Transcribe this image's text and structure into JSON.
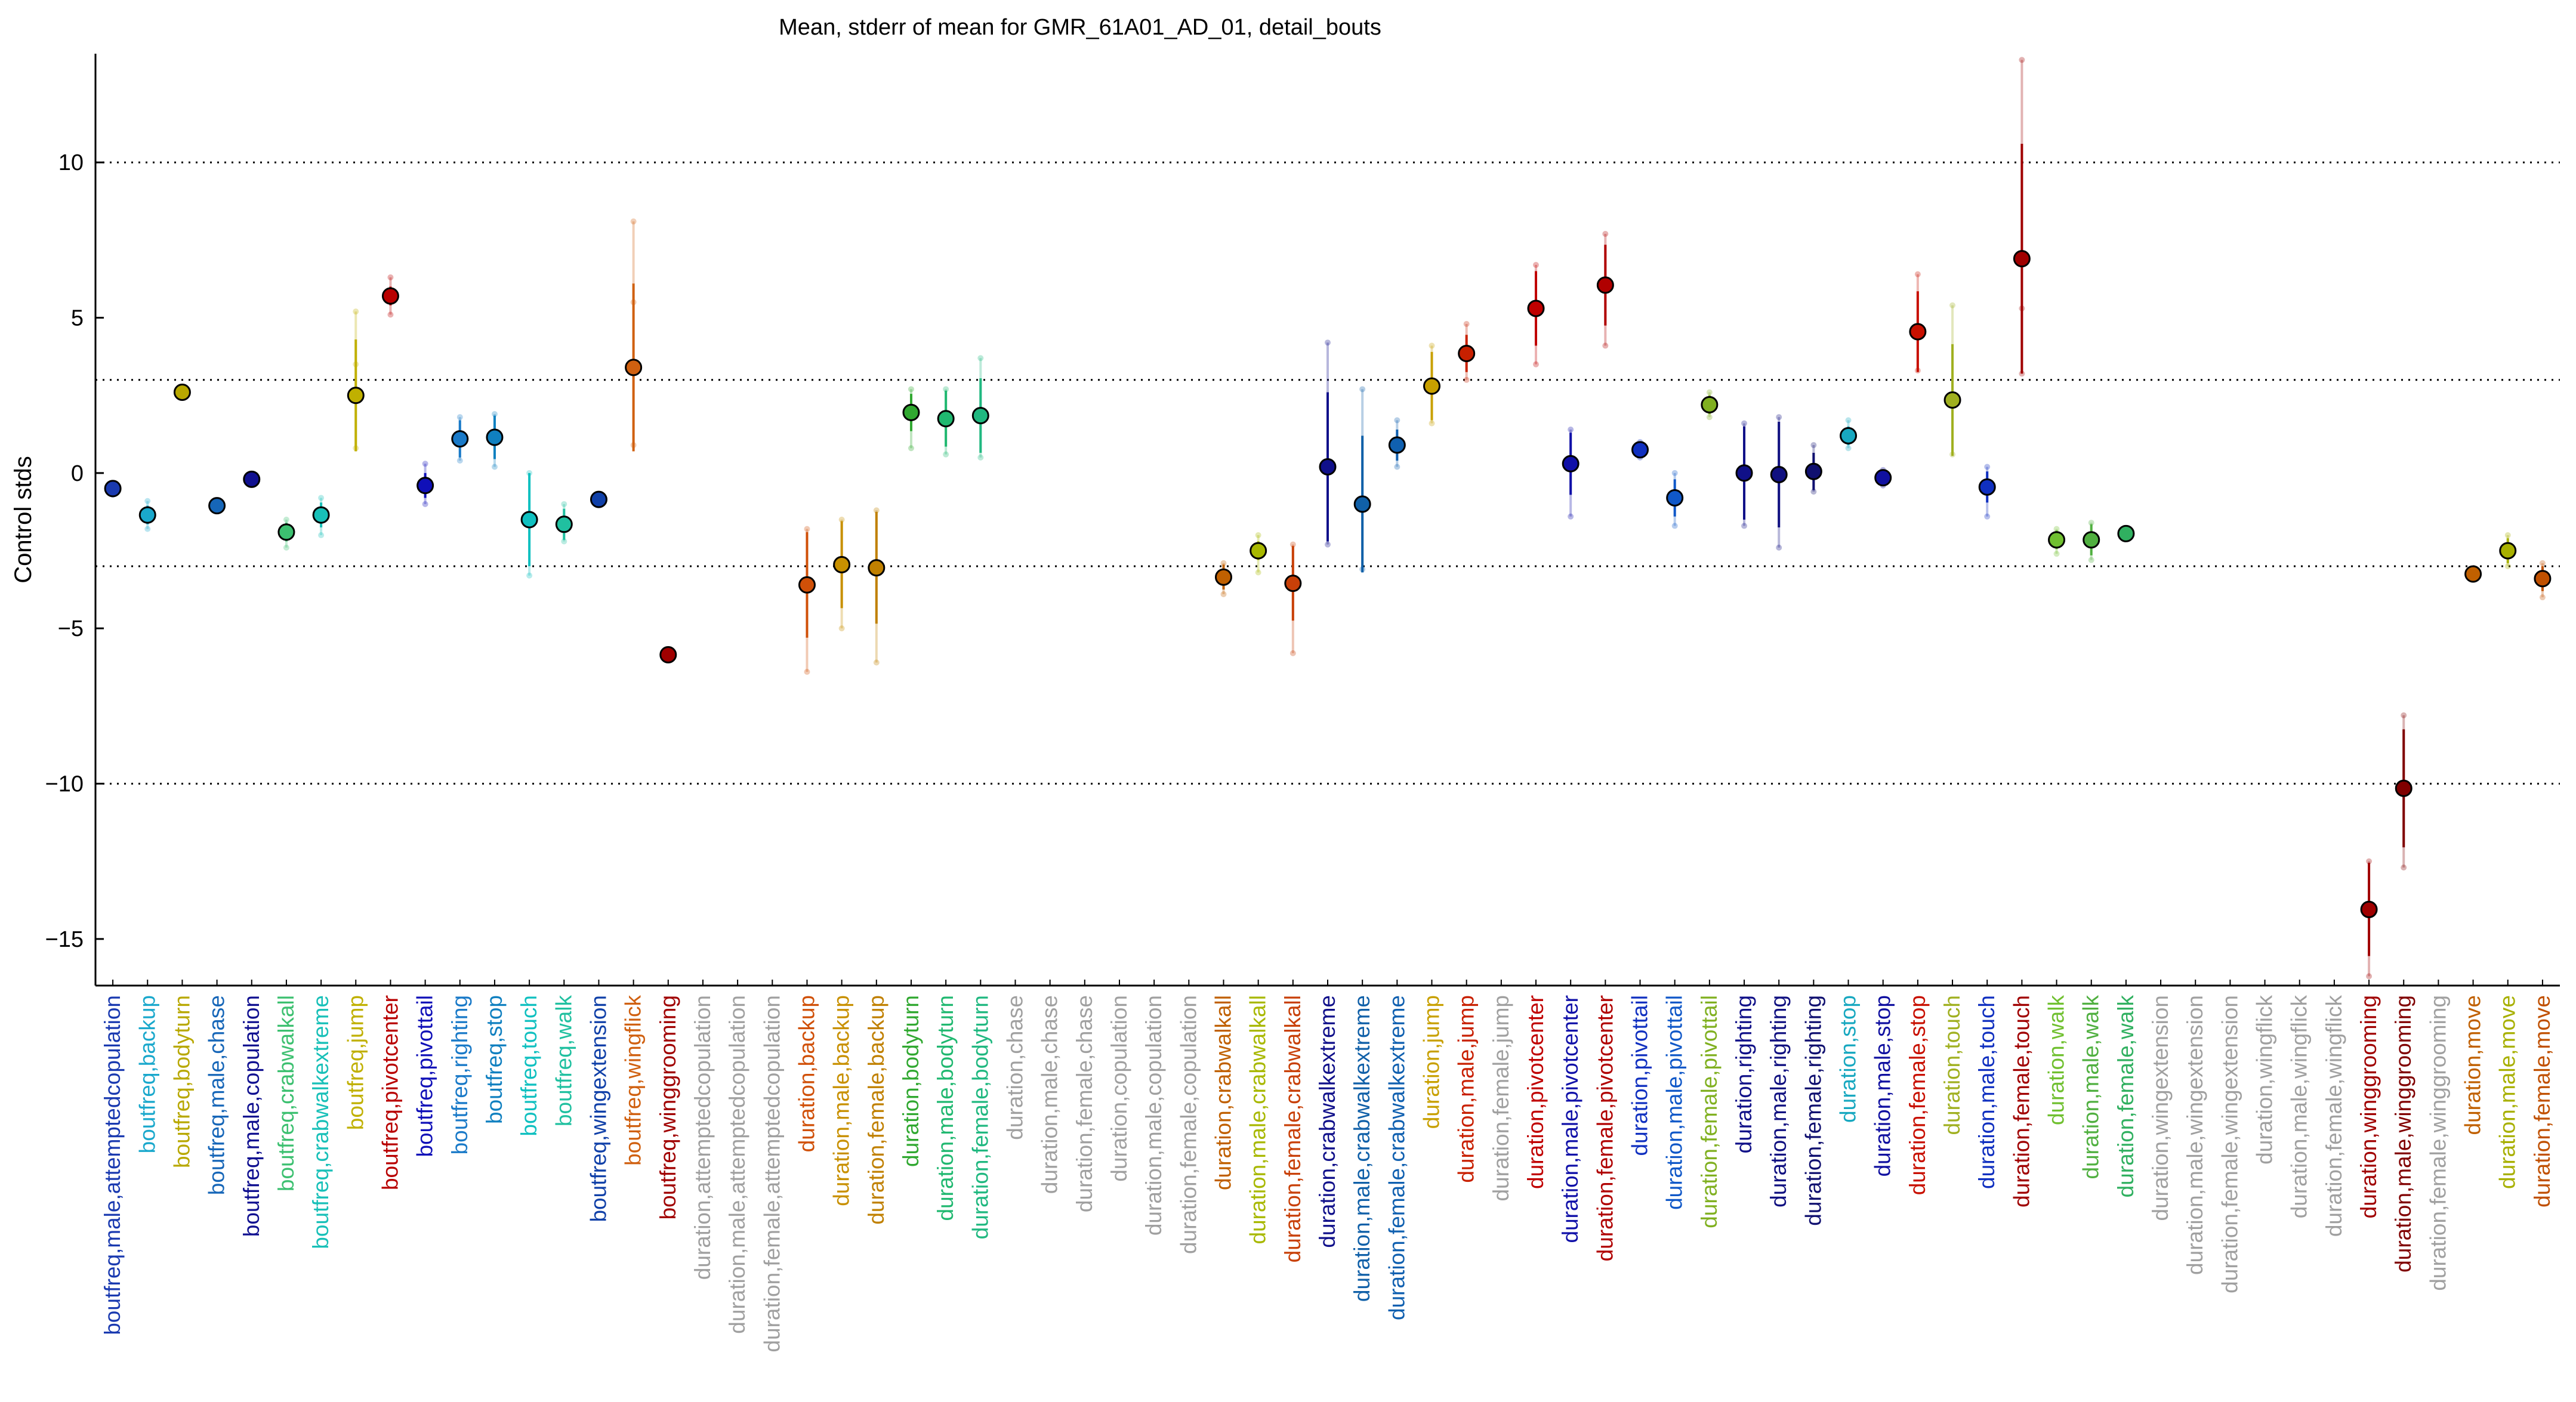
{
  "chart_data": {
    "type": "scatter",
    "title": "Mean, stderr of mean for GMR_61A01_AD_01, detail_bouts",
    "ylabel": "Control stds",
    "xlabel": "",
    "ylim": [
      -16.5,
      13.5
    ],
    "yticks": [
      -15,
      -10,
      -5,
      0,
      5,
      10
    ],
    "reference_lines": [
      -10,
      -3,
      3,
      10
    ],
    "grid": false,
    "points": [
      {
        "label": "boutfreq,male,attemptedcopulation",
        "y": -0.5,
        "err": 0.2,
        "pts": [
          -0.4,
          -0.7
        ],
        "color": "#1a3ab0"
      },
      {
        "label": "boutfreq,backup",
        "y": -1.35,
        "err": 0.3,
        "pts": [
          -0.9,
          -1.8
        ],
        "color": "#1aa8cc"
      },
      {
        "label": "boutfreq,bodyturn",
        "y": 2.6,
        "err": 0.1,
        "pts": [
          2.5,
          2.7
        ],
        "color": "#b8a800"
      },
      {
        "label": "boutfreq,male,chase",
        "y": -1.05,
        "err": 0.1,
        "pts": [
          -1.0,
          -1.1
        ],
        "color": "#1666b8"
      },
      {
        "label": "boutfreq,male,copulation",
        "y": -0.2,
        "err": 0.1,
        "pts": [
          -0.1,
          -0.3
        ],
        "color": "#101090"
      },
      {
        "label": "boutfreq,crabwalkall",
        "y": -1.9,
        "err": 0.3,
        "pts": [
          -1.5,
          -2.4
        ],
        "color": "#3cc070"
      },
      {
        "label": "boutfreq,crabwalkextreme",
        "y": -1.35,
        "err": 0.4,
        "pts": [
          -0.8,
          -2.0
        ],
        "color": "#18c0b8"
      },
      {
        "label": "boutfreq,jump",
        "y": 2.5,
        "err": 1.8,
        "pts": [
          5.2,
          0.8,
          3.5
        ],
        "color": "#c0b000"
      },
      {
        "label": "boutfreq,pivotcenter",
        "y": 5.7,
        "err": 0.3,
        "pts": [
          6.3,
          5.1
        ],
        "color": "#b80000"
      },
      {
        "label": "boutfreq,pivottail",
        "y": -0.4,
        "err": 0.4,
        "pts": [
          0.3,
          -1.0
        ],
        "color": "#1010b8"
      },
      {
        "label": "boutfreq,righting",
        "y": 1.1,
        "err": 0.6,
        "pts": [
          1.8,
          0.4
        ],
        "color": "#1a7ac8"
      },
      {
        "label": "boutfreq,stop",
        "y": 1.15,
        "err": 0.7,
        "pts": [
          1.9,
          0.2
        ],
        "color": "#1080c0"
      },
      {
        "label": "boutfreq,touch",
        "y": -1.5,
        "err": 1.5,
        "pts": [
          0.0,
          -3.3
        ],
        "color": "#10c0c0"
      },
      {
        "label": "boutfreq,walk",
        "y": -1.65,
        "err": 0.5,
        "pts": [
          -1.0,
          -2.2
        ],
        "color": "#20c0a0"
      },
      {
        "label": "boutfreq,wingextension",
        "y": -0.85,
        "err": 0.1,
        "pts": [
          -0.8,
          -0.9
        ],
        "color": "#1040a8"
      },
      {
        "label": "boutfreq,wingflick",
        "y": 3.4,
        "err": 2.7,
        "pts": [
          8.1,
          0.9,
          5.5
        ],
        "color": "#d06010"
      },
      {
        "label": "boutfreq,winggrooming",
        "y": -5.85,
        "err": 0.1,
        "pts": [
          -5.8,
          -5.9
        ],
        "color": "#a00000"
      },
      {
        "label": "duration,attemptedcopulation",
        "color": "#a0a0a0"
      },
      {
        "label": "duration,male,attemptedcopulation",
        "color": "#a0a0a0"
      },
      {
        "label": "duration,female,attemptedcopulation",
        "color": "#a0a0a0"
      },
      {
        "label": "duration,backup",
        "y": -3.6,
        "err": 1.7,
        "pts": [
          -1.8,
          -6.4
        ],
        "color": "#d05008"
      },
      {
        "label": "duration,male,backup",
        "y": -2.95,
        "err": 1.4,
        "pts": [
          -1.5,
          -5.0
        ],
        "color": "#c89000"
      },
      {
        "label": "duration,female,backup",
        "y": -3.05,
        "err": 1.8,
        "pts": [
          -1.2,
          -6.1
        ],
        "color": "#c08000"
      },
      {
        "label": "duration,bodyturn",
        "y": 1.95,
        "err": 0.6,
        "pts": [
          2.7,
          0.8
        ],
        "color": "#30a830"
      },
      {
        "label": "duration,male,bodyturn",
        "y": 1.75,
        "err": 0.9,
        "pts": [
          2.7,
          0.6
        ],
        "color": "#20b870"
      },
      {
        "label": "duration,female,bodyturn",
        "y": 1.85,
        "err": 1.2,
        "pts": [
          3.7,
          0.5
        ],
        "color": "#20b880"
      },
      {
        "label": "duration,chase",
        "color": "#a0a0a0"
      },
      {
        "label": "duration,male,chase",
        "color": "#a0a0a0"
      },
      {
        "label": "duration,female,chase",
        "color": "#a0a0a0"
      },
      {
        "label": "duration,copulation",
        "color": "#a0a0a0"
      },
      {
        "label": "duration,male,copulation",
        "color": "#a0a0a0"
      },
      {
        "label": "duration,female,copulation",
        "color": "#a0a0a0"
      },
      {
        "label": "duration,crabwalkall",
        "y": -3.35,
        "err": 0.4,
        "pts": [
          -2.9,
          -3.9
        ],
        "color": "#c06000"
      },
      {
        "label": "duration,male,crabwalkall",
        "y": -2.5,
        "err": 0.3,
        "pts": [
          -2.0,
          -3.2
        ],
        "color": "#a8b800"
      },
      {
        "label": "duration,female,crabwalkall",
        "y": -3.55,
        "err": 1.2,
        "pts": [
          -2.3,
          -5.8
        ],
        "color": "#c84008"
      },
      {
        "label": "duration,crabwalkextreme",
        "y": 0.2,
        "err": 2.4,
        "pts": [
          4.2,
          -2.3
        ],
        "color": "#10108a"
      },
      {
        "label": "duration,male,crabwalkextreme",
        "y": -1.0,
        "err": 2.2,
        "pts": [
          2.7,
          -3.1
        ],
        "color": "#1060a8"
      },
      {
        "label": "duration,female,crabwalkextreme",
        "y": 0.9,
        "err": 0.5,
        "pts": [
          1.7,
          0.2
        ],
        "color": "#1060b0"
      },
      {
        "label": "duration,jump",
        "y": 2.8,
        "err": 1.1,
        "pts": [
          4.1,
          1.6
        ],
        "color": "#c8a000"
      },
      {
        "label": "duration,male,jump",
        "y": 3.85,
        "err": 0.6,
        "pts": [
          4.8,
          3.0
        ],
        "color": "#c82000"
      },
      {
        "label": "duration,female,jump",
        "color": "#a0a0a0"
      },
      {
        "label": "duration,pivotcenter",
        "y": 5.3,
        "err": 1.2,
        "pts": [
          6.7,
          3.5
        ],
        "color": "#c00000"
      },
      {
        "label": "duration,male,pivotcenter",
        "y": 0.3,
        "err": 1.0,
        "pts": [
          1.4,
          -1.4
        ],
        "color": "#1010a8"
      },
      {
        "label": "duration,female,pivotcenter",
        "y": 6.05,
        "err": 1.3,
        "pts": [
          7.7,
          4.1
        ],
        "color": "#b00000"
      },
      {
        "label": "duration,pivottail",
        "y": 0.75,
        "err": 0.2,
        "pts": [
          1.0,
          0.5
        ],
        "color": "#1030c0"
      },
      {
        "label": "duration,male,pivottail",
        "y": -0.8,
        "err": 0.6,
        "pts": [
          0.0,
          -1.7
        ],
        "color": "#1058c8"
      },
      {
        "label": "duration,female,pivottail",
        "y": 2.2,
        "err": 0.3,
        "pts": [
          2.6,
          1.8
        ],
        "color": "#80b020"
      },
      {
        "label": "duration,righting",
        "y": 0.0,
        "err": 1.5,
        "pts": [
          1.6,
          -1.7
        ],
        "color": "#101088"
      },
      {
        "label": "duration,male,righting",
        "y": -0.05,
        "err": 1.7,
        "pts": [
          1.8,
          -2.4
        ],
        "color": "#101080"
      },
      {
        "label": "duration,female,righting",
        "y": 0.05,
        "err": 0.6,
        "pts": [
          0.9,
          -0.6
        ],
        "color": "#101070"
      },
      {
        "label": "duration,stop",
        "y": 1.2,
        "err": 0.3,
        "pts": [
          1.7,
          0.8
        ],
        "color": "#18a8c0"
      },
      {
        "label": "duration,male,stop",
        "y": -0.15,
        "err": 0.2,
        "pts": [
          0.1,
          -0.4
        ],
        "color": "#1010a0"
      },
      {
        "label": "duration,female,stop",
        "y": 4.55,
        "err": 1.3,
        "pts": [
          6.4,
          3.3
        ],
        "color": "#c81000"
      },
      {
        "label": "duration,touch",
        "y": 2.35,
        "err": 1.8,
        "pts": [
          5.4,
          0.6
        ],
        "color": "#a0b020"
      },
      {
        "label": "duration,male,touch",
        "y": -0.45,
        "err": 0.5,
        "pts": [
          0.2,
          -1.4
        ],
        "color": "#1030c0"
      },
      {
        "label": "duration,female,touch",
        "y": 6.9,
        "err": 3.7,
        "pts": [
          13.3,
          3.2,
          5.3
        ],
        "color": "#a00000"
      },
      {
        "label": "duration,walk",
        "y": -2.15,
        "err": 0.3,
        "pts": [
          -1.8,
          -2.6
        ],
        "color": "#70c030"
      },
      {
        "label": "duration,male,walk",
        "y": -2.15,
        "err": 0.5,
        "pts": [
          -1.6,
          -2.8
        ],
        "color": "#50b040"
      },
      {
        "label": "duration,female,walk",
        "y": -1.95,
        "err": 0.1,
        "pts": [
          -1.9,
          -2.0
        ],
        "color": "#30b060"
      },
      {
        "label": "duration,wingextension",
        "color": "#a0a0a0"
      },
      {
        "label": "duration,male,wingextension",
        "color": "#a0a0a0"
      },
      {
        "label": "duration,female,wingextension",
        "color": "#a0a0a0"
      },
      {
        "label": "duration,wingflick",
        "color": "#a0a0a0"
      },
      {
        "label": "duration,male,wingflick",
        "color": "#a0a0a0"
      },
      {
        "label": "duration,female,wingflick",
        "color": "#a0a0a0"
      },
      {
        "label": "duration,winggrooming",
        "y": -14.05,
        "err": 1.5,
        "pts": [
          -12.5,
          -16.2
        ],
        "color": "#a00000"
      },
      {
        "label": "duration,male,winggrooming",
        "y": -10.15,
        "err": 1.9,
        "pts": [
          -7.8,
          -12.7
        ],
        "color": "#800000"
      },
      {
        "label": "duration,female,winggrooming",
        "color": "#a0a0a0"
      },
      {
        "label": "duration,move",
        "y": -3.25,
        "err": 0.1,
        "pts": [
          -3.2,
          -3.3
        ],
        "color": "#c06000"
      },
      {
        "label": "duration,male,move",
        "y": -2.5,
        "err": 0.4,
        "pts": [
          -2.0,
          -3.0
        ],
        "color": "#a8b000"
      },
      {
        "label": "duration,female,move",
        "y": -3.4,
        "err": 0.4,
        "pts": [
          -2.9,
          -4.0
        ],
        "color": "#c05000"
      }
    ]
  }
}
